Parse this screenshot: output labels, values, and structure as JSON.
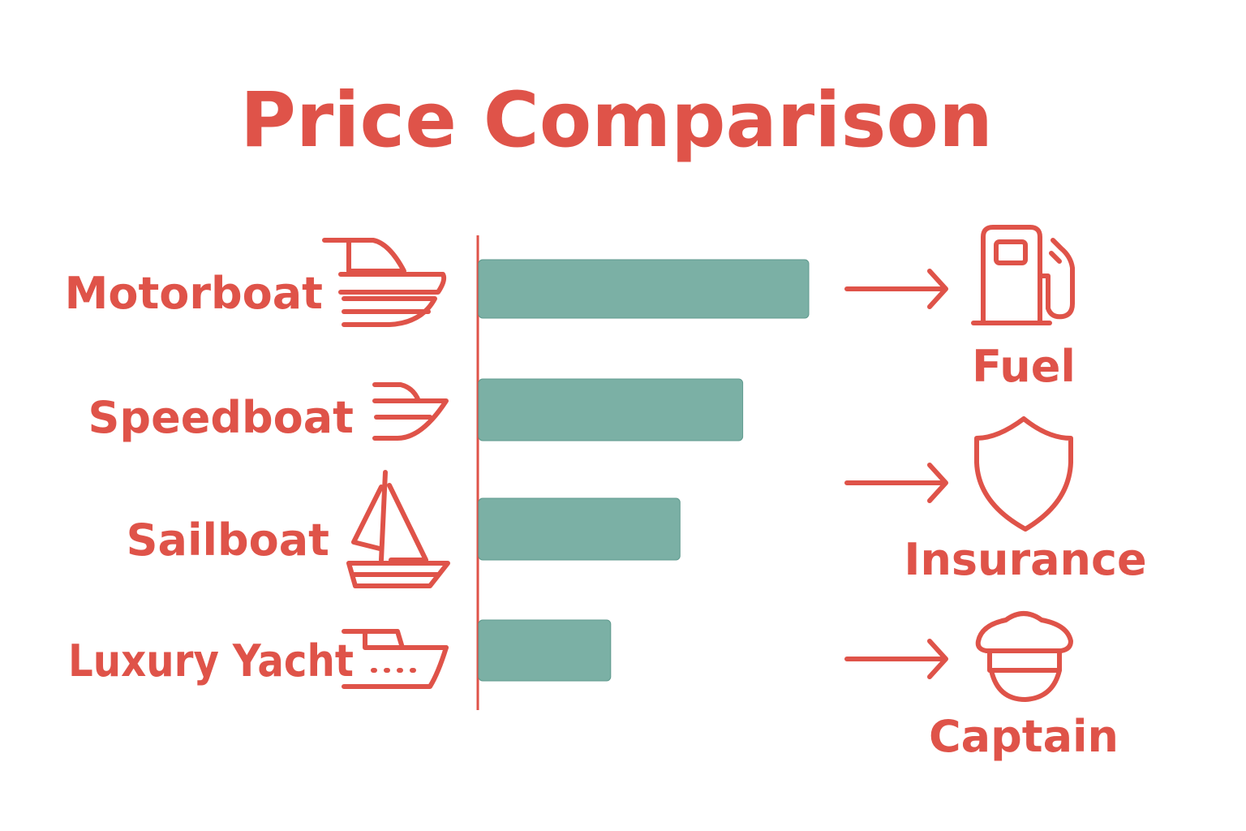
{
  "colors": {
    "accent": "#df5349",
    "bar": "#7bb0a5"
  },
  "chart_data": {
    "type": "bar",
    "orientation": "horizontal",
    "title": "Price Comparison",
    "categories": [
      "Motorboat",
      "Speedboat",
      "Sailboat",
      "Luxury Yacht"
    ],
    "values": [
      100,
      80,
      61,
      40
    ],
    "value_scale": "relative, no axis printed",
    "xlabel": "",
    "ylabel": "",
    "grid": false,
    "category_icons": [
      "motorboat-icon",
      "speedboat-icon",
      "sailboat-icon",
      "yacht-icon"
    ],
    "cost_factors": [
      {
        "label": "Fuel",
        "icon": "fuel-pump-icon"
      },
      {
        "label": "Insurance",
        "icon": "shield-icon"
      },
      {
        "label": "Captain",
        "icon": "captain-hat-icon"
      }
    ]
  }
}
